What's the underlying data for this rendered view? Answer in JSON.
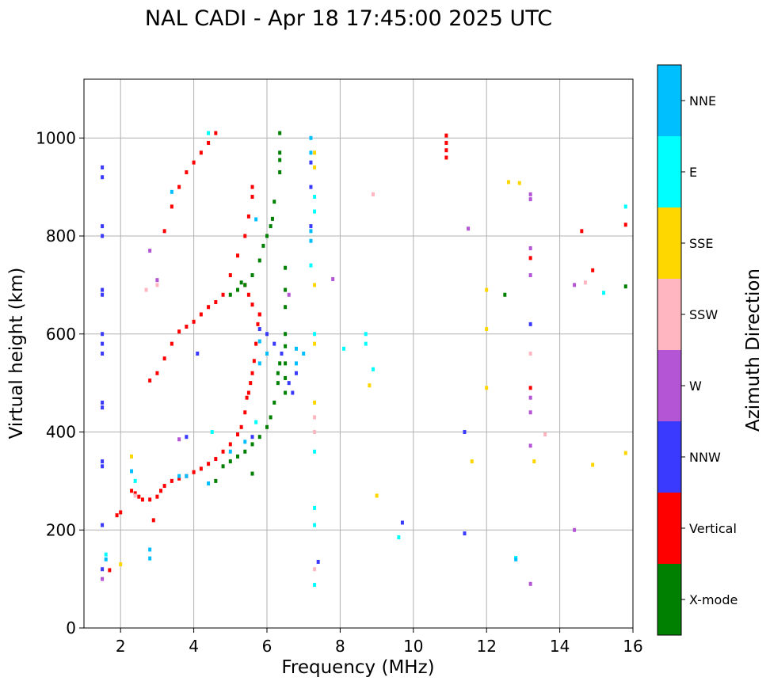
{
  "chart_data": {
    "type": "scatter",
    "title": "NAL CADI - Apr 18 17:45:00 2025 UTC",
    "xlabel": "Frequency (MHz)",
    "ylabel": "Virtual height (km)",
    "xlim": [
      1,
      16
    ],
    "ylim": [
      0,
      1120
    ],
    "xticks": [
      2,
      4,
      6,
      8,
      10,
      12,
      14,
      16
    ],
    "yticks": [
      0,
      200,
      400,
      600,
      800,
      1000
    ],
    "grid": true,
    "colorbar": {
      "label": "Azimuth Direction",
      "categories": [
        {
          "name": "X-mode",
          "color": "#008000"
        },
        {
          "name": "Vertical",
          "color": "#ff0000"
        },
        {
          "name": "NNW",
          "color": "#3a3aff"
        },
        {
          "name": "W",
          "color": "#b455d5"
        },
        {
          "name": "SSW",
          "color": "#ffb6c1"
        },
        {
          "name": "SSE",
          "color": "#ffd700"
        },
        {
          "name": "E",
          "color": "#00ffff"
        },
        {
          "name": "NNE",
          "color": "#00bfff"
        }
      ]
    },
    "series": [
      {
        "name": "Vertical",
        "points": [
          [
            1.7,
            118
          ],
          [
            1.9,
            230
          ],
          [
            2.0,
            236
          ],
          [
            2.3,
            280
          ],
          [
            2.4,
            275
          ],
          [
            2.5,
            268
          ],
          [
            2.6,
            262
          ],
          [
            2.8,
            262
          ],
          [
            3.0,
            268
          ],
          [
            3.1,
            280
          ],
          [
            3.2,
            290
          ],
          [
            3.4,
            300
          ],
          [
            3.6,
            305
          ],
          [
            3.8,
            310
          ],
          [
            4.0,
            318
          ],
          [
            4.2,
            325
          ],
          [
            4.4,
            335
          ],
          [
            4.6,
            345
          ],
          [
            4.8,
            360
          ],
          [
            5.0,
            375
          ],
          [
            5.2,
            395
          ],
          [
            5.3,
            410
          ],
          [
            5.4,
            440
          ],
          [
            5.45,
            470
          ],
          [
            5.5,
            480
          ],
          [
            5.55,
            500
          ],
          [
            5.6,
            520
          ],
          [
            5.65,
            545
          ],
          [
            5.7,
            580
          ],
          [
            5.75,
            620
          ],
          [
            5.8,
            640
          ],
          [
            2.8,
            505
          ],
          [
            3.0,
            520
          ],
          [
            3.2,
            550
          ],
          [
            3.4,
            580
          ],
          [
            3.6,
            605
          ],
          [
            3.8,
            615
          ],
          [
            4.0,
            625
          ],
          [
            4.2,
            640
          ],
          [
            4.4,
            655
          ],
          [
            4.6,
            665
          ],
          [
            4.8,
            680
          ],
          [
            5.0,
            720
          ],
          [
            5.2,
            760
          ],
          [
            5.4,
            800
          ],
          [
            5.5,
            840
          ],
          [
            5.6,
            880
          ],
          [
            5.6,
            900
          ],
          [
            3.2,
            810
          ],
          [
            3.4,
            860
          ],
          [
            3.6,
            900
          ],
          [
            3.8,
            930
          ],
          [
            4.0,
            950
          ],
          [
            4.2,
            970
          ],
          [
            4.4,
            990
          ],
          [
            4.6,
            1010
          ],
          [
            5.4,
            700
          ],
          [
            5.5,
            680
          ],
          [
            5.6,
            660
          ],
          [
            5.8,
            640
          ],
          [
            10.9,
            960
          ],
          [
            10.9,
            975
          ],
          [
            10.9,
            990
          ],
          [
            10.9,
            1005
          ],
          [
            13.2,
            755
          ],
          [
            13.2,
            490
          ],
          [
            14.6,
            810
          ],
          [
            14.9,
            730
          ],
          [
            15.8,
            823
          ],
          [
            2.9,
            220
          ]
        ]
      },
      {
        "name": "X-mode",
        "points": [
          [
            4.6,
            300
          ],
          [
            4.8,
            330
          ],
          [
            5.0,
            340
          ],
          [
            5.2,
            350
          ],
          [
            5.4,
            360
          ],
          [
            5.6,
            375
          ],
          [
            5.8,
            390
          ],
          [
            6.0,
            410
          ],
          [
            6.1,
            430
          ],
          [
            6.2,
            460
          ],
          [
            6.3,
            500
          ],
          [
            6.3,
            520
          ],
          [
            6.35,
            540
          ],
          [
            6.35,
            930
          ],
          [
            6.35,
            955
          ],
          [
            6.35,
            970
          ],
          [
            6.35,
            1010
          ],
          [
            5.4,
            700
          ],
          [
            5.6,
            720
          ],
          [
            5.8,
            750
          ],
          [
            5.9,
            780
          ],
          [
            6.0,
            800
          ],
          [
            6.1,
            820
          ],
          [
            6.15,
            835
          ],
          [
            6.2,
            870
          ],
          [
            5.0,
            680
          ],
          [
            5.2,
            690
          ],
          [
            5.3,
            705
          ],
          [
            6.5,
            735
          ],
          [
            6.5,
            690
          ],
          [
            6.5,
            655
          ],
          [
            6.5,
            600
          ],
          [
            6.5,
            575
          ],
          [
            6.5,
            540
          ],
          [
            6.5,
            510
          ],
          [
            6.5,
            480
          ],
          [
            12.5,
            680
          ],
          [
            15.8,
            697
          ],
          [
            5.6,
            315
          ]
        ]
      },
      {
        "name": "NNW",
        "points": [
          [
            1.5,
            120
          ],
          [
            1.5,
            210
          ],
          [
            1.5,
            330
          ],
          [
            1.5,
            340
          ],
          [
            1.5,
            450
          ],
          [
            1.5,
            460
          ],
          [
            1.5,
            560
          ],
          [
            1.5,
            580
          ],
          [
            1.5,
            600
          ],
          [
            1.5,
            680
          ],
          [
            1.5,
            690
          ],
          [
            1.5,
            800
          ],
          [
            1.5,
            820
          ],
          [
            1.5,
            920
          ],
          [
            1.5,
            940
          ],
          [
            3.8,
            390
          ],
          [
            4.1,
            560
          ],
          [
            5.6,
            390
          ],
          [
            5.8,
            610
          ],
          [
            6.0,
            600
          ],
          [
            6.2,
            580
          ],
          [
            6.4,
            560
          ],
          [
            6.6,
            500
          ],
          [
            6.7,
            480
          ],
          [
            6.8,
            520
          ],
          [
            7.2,
            820
          ],
          [
            7.2,
            900
          ],
          [
            7.2,
            950
          ],
          [
            7.4,
            135
          ],
          [
            9.7,
            215
          ],
          [
            11.4,
            400
          ],
          [
            11.4,
            193
          ],
          [
            13.2,
            620
          ]
        ]
      },
      {
        "name": "W",
        "points": [
          [
            1.5,
            100
          ],
          [
            2.8,
            770
          ],
          [
            3.0,
            710
          ],
          [
            3.6,
            385
          ],
          [
            7.8,
            712
          ],
          [
            13.2,
            885
          ],
          [
            13.2,
            875
          ],
          [
            13.2,
            775
          ],
          [
            13.2,
            720
          ],
          [
            13.2,
            470
          ],
          [
            13.2,
            440
          ],
          [
            13.2,
            372
          ],
          [
            13.2,
            90
          ],
          [
            14.4,
            700
          ],
          [
            14.4,
            200
          ],
          [
            11.5,
            815
          ],
          [
            6.6,
            680
          ]
        ]
      },
      {
        "name": "SSW",
        "points": [
          [
            2.4,
            270
          ],
          [
            2.7,
            690
          ],
          [
            3.0,
            700
          ],
          [
            8.9,
            885
          ],
          [
            13.2,
            560
          ],
          [
            13.6,
            395
          ],
          [
            14.7,
            705
          ],
          [
            7.3,
            120
          ],
          [
            7.3,
            400
          ],
          [
            7.3,
            430
          ]
        ]
      },
      {
        "name": "SSE",
        "points": [
          [
            2.0,
            130
          ],
          [
            2.3,
            350
          ],
          [
            12.0,
            490
          ],
          [
            12.0,
            610
          ],
          [
            12.0,
            690
          ],
          [
            11.6,
            340
          ],
          [
            12.9,
            908
          ],
          [
            12.6,
            910
          ],
          [
            13.3,
            340
          ],
          [
            14.9,
            333
          ],
          [
            15.8,
            357
          ],
          [
            9.0,
            270
          ],
          [
            8.8,
            495
          ],
          [
            7.3,
            970
          ],
          [
            7.3,
            940
          ],
          [
            7.3,
            700
          ],
          [
            7.3,
            580
          ],
          [
            7.3,
            460
          ]
        ]
      },
      {
        "name": "E",
        "points": [
          [
            1.6,
            150
          ],
          [
            2.4,
            300
          ],
          [
            4.5,
            400
          ],
          [
            4.4,
            1010
          ],
          [
            5.7,
            420
          ],
          [
            7.3,
            880
          ],
          [
            7.3,
            850
          ],
          [
            7.3,
            600
          ],
          [
            7.3,
            360
          ],
          [
            7.3,
            245
          ],
          [
            7.3,
            210
          ],
          [
            7.3,
            88
          ],
          [
            8.1,
            570
          ],
          [
            8.7,
            600
          ],
          [
            8.7,
            580
          ],
          [
            8.9,
            528
          ],
          [
            15.2,
            684
          ],
          [
            15.8,
            860
          ],
          [
            12.8,
            143
          ],
          [
            9.6,
            185
          ],
          [
            7.2,
            740
          ]
        ]
      },
      {
        "name": "NNE",
        "points": [
          [
            1.6,
            140
          ],
          [
            2.8,
            160
          ],
          [
            2.8,
            142
          ],
          [
            2.3,
            320
          ],
          [
            3.6,
            310
          ],
          [
            3.8,
            310
          ],
          [
            4.4,
            295
          ],
          [
            5.0,
            360
          ],
          [
            5.4,
            380
          ],
          [
            5.8,
            540
          ],
          [
            6.0,
            560
          ],
          [
            6.8,
            540
          ],
          [
            6.8,
            570
          ],
          [
            7.0,
            560
          ],
          [
            5.8,
            585
          ],
          [
            5.7,
            834
          ],
          [
            7.2,
            1000
          ],
          [
            7.2,
            970
          ],
          [
            7.2,
            790
          ],
          [
            7.2,
            810
          ],
          [
            12.8,
            140
          ],
          [
            3.4,
            890
          ]
        ]
      }
    ]
  }
}
